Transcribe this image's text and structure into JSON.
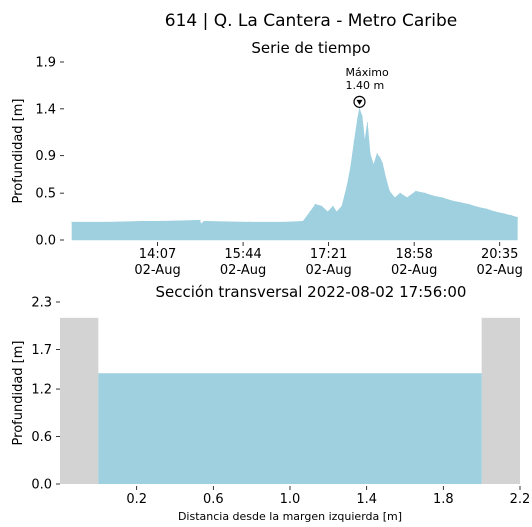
{
  "figure": {
    "suptitle": "614 | Q. La Cantera - Metro Caribe"
  },
  "colors": {
    "water": "#9ed0e0",
    "bank": "#d3d3d3",
    "ink": "#000000"
  },
  "chart_data": [
    {
      "type": "area",
      "title": "Serie de tiempo",
      "xlabel": "",
      "ylabel": "Profundidad [m]",
      "ylim": [
        0.0,
        1.9
      ],
      "yticks": [
        0.0,
        0.5,
        0.9,
        1.4,
        1.9
      ],
      "ytick_labels": [
        "0.0",
        "0.5",
        "0.9",
        "1.4",
        "1.9"
      ],
      "x_unit": "minutes after 12:30 on 02-Aug",
      "xlim": [
        0,
        508
      ],
      "xticks": [
        97,
        194,
        291,
        388,
        485
      ],
      "xtick_labels": [
        [
          "14:07",
          "02-Aug"
        ],
        [
          "15:44",
          "02-Aug"
        ],
        [
          "17:21",
          "02-Aug"
        ],
        [
          "18:58",
          "02-Aug"
        ],
        [
          "20:35",
          "02-Aug"
        ]
      ],
      "grid": false,
      "annotation": {
        "label_line1": "Máximo",
        "label_line2": "1.40 m",
        "x": 326,
        "y": 1.4,
        "marker": "circle-down-triangle"
      },
      "x": [
        0,
        40,
        80,
        100,
        145,
        146,
        150,
        200,
        240,
        262,
        270,
        276,
        283,
        290,
        296,
        300,
        306,
        312,
        316,
        320,
        324,
        326,
        329,
        332,
        335,
        338,
        342,
        346,
        349,
        352,
        356,
        360,
        366,
        372,
        380,
        390,
        400,
        410,
        420,
        430,
        440,
        450,
        460,
        470,
        480,
        490,
        498,
        505
      ],
      "values": [
        0.19,
        0.19,
        0.2,
        0.2,
        0.21,
        0.17,
        0.2,
        0.19,
        0.19,
        0.2,
        0.3,
        0.38,
        0.36,
        0.3,
        0.36,
        0.3,
        0.36,
        0.58,
        0.78,
        1.05,
        1.3,
        1.4,
        1.32,
        1.05,
        1.25,
        0.92,
        0.8,
        0.92,
        0.88,
        0.82,
        0.65,
        0.52,
        0.45,
        0.5,
        0.45,
        0.52,
        0.5,
        0.47,
        0.45,
        0.42,
        0.4,
        0.38,
        0.35,
        0.33,
        0.3,
        0.28,
        0.26,
        0.24
      ]
    },
    {
      "type": "area",
      "title": "Sección transversal 2022-08-02 17:56:00",
      "xlabel": "Distancia desde la margen izquierda [m]",
      "ylabel": "Profundidad [m]",
      "ylim": [
        0.0,
        2.3
      ],
      "xlim": [
        -0.2,
        2.2
      ],
      "yticks": [
        0.0,
        0.6,
        1.2,
        1.7,
        2.3
      ],
      "ytick_labels": [
        "0.0",
        "0.6",
        "1.2",
        "1.7",
        "2.3"
      ],
      "xticks": [
        0.2,
        0.6,
        1.0,
        1.4,
        1.8,
        2.2
      ],
      "xtick_labels": [
        "0.2",
        "0.6",
        "1.0",
        "1.4",
        "1.8",
        "2.2"
      ],
      "grid": false,
      "banks": {
        "left_x": [
          -0.2,
          0.0
        ],
        "right_x": [
          2.0,
          2.2
        ],
        "top": 2.1
      },
      "water_level": 1.4,
      "channel_x": [
        0.0,
        2.0
      ]
    }
  ]
}
